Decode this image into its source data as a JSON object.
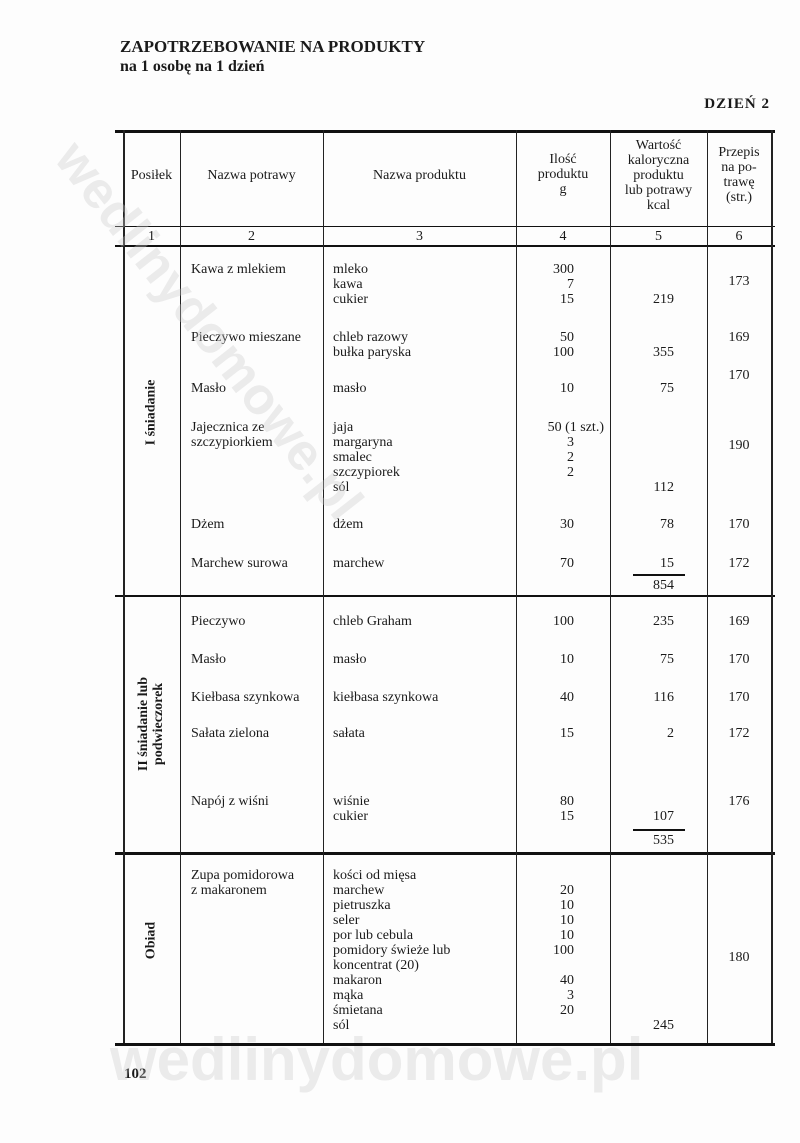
{
  "title": "ZAPOTRZEBOWANIE NA PRODUKTY",
  "subtitle": "na 1 osobę na 1 dzień",
  "day": "DZIEŃ 2",
  "page_number": "102",
  "watermark": "wedlinydomowe.pl",
  "table": {
    "headers": [
      "Posiłek",
      "Nazwa potrawy",
      "Nazwa produktu",
      "Ilość\nproduktu\ng",
      "Wartość\nkaloryczna\nproduktu\nlub potrawy\nkcal",
      "Przepis\nna po-\ntrawę\n(str.)"
    ],
    "column_numbers": [
      "1",
      "2",
      "3",
      "4",
      "5",
      "6"
    ],
    "meals": [
      {
        "name": "I śniadanie",
        "total": "854",
        "dishes": [
          {
            "name": "Kawa z mlekiem",
            "products": [
              "mleko",
              "kawa",
              "cukier"
            ],
            "qty": [
              "300",
              "7",
              "15"
            ],
            "kcal": "219",
            "recipe": "173"
          },
          {
            "name": "Pieczywo mieszane",
            "products": [
              "chleb razowy",
              "bułka paryska"
            ],
            "qty": [
              "50",
              "100"
            ],
            "kcal": "355",
            "recipe": "169"
          },
          {
            "name": "Masło",
            "products": [
              "masło"
            ],
            "qty": [
              "10"
            ],
            "kcal": "75",
            "recipe": "170"
          },
          {
            "name": "Jajecznica ze\nszczypiorkiem",
            "products": [
              "jaja",
              "margaryna",
              "smalec",
              "szczypiorek",
              "sól"
            ],
            "qty": [
              "50 (1 szt.)",
              "3",
              "2",
              "2",
              ""
            ],
            "kcal": "112",
            "recipe": "190"
          },
          {
            "name": "Dżem",
            "products": [
              "dżem"
            ],
            "qty": [
              "30"
            ],
            "kcal": "78",
            "recipe": "170"
          },
          {
            "name": "Marchew surowa",
            "products": [
              "marchew"
            ],
            "qty": [
              "70"
            ],
            "kcal": "15",
            "recipe": "172"
          }
        ]
      },
      {
        "name": "II śniadanie lub\npodwieczorek",
        "total": "535",
        "dishes": [
          {
            "name": "Pieczywo",
            "products": [
              "chleb Graham"
            ],
            "qty": [
              "100"
            ],
            "kcal": "235",
            "recipe": "169"
          },
          {
            "name": "Masło",
            "products": [
              "masło"
            ],
            "qty": [
              "10"
            ],
            "kcal": "75",
            "recipe": "170"
          },
          {
            "name": "Kiełbasa szynkowa",
            "products": [
              "kiełbasa szynkowa"
            ],
            "qty": [
              "40"
            ],
            "kcal": "116",
            "recipe": "170"
          },
          {
            "name": "Sałata zielona",
            "products": [
              "sałata"
            ],
            "qty": [
              "15"
            ],
            "kcal": "2",
            "recipe": "172"
          },
          {
            "name": "Napój z wiśni",
            "products": [
              "wiśnie",
              "cukier"
            ],
            "qty": [
              "80",
              "15"
            ],
            "kcal": "107",
            "recipe": "176"
          }
        ]
      },
      {
        "name": "Obiad",
        "total": "",
        "dishes": [
          {
            "name": "Zupa pomidorowa\nz makaronem",
            "products": [
              "kości od mięsa",
              "marchew",
              "pietruszka",
              "seler",
              "por lub cebula",
              "pomidory świeże lub",
              "koncentrat (20)",
              "makaron",
              "mąka",
              "śmietana",
              "sól"
            ],
            "qty": [
              "",
              "20",
              "10",
              "10",
              "10",
              "100",
              "",
              "40",
              "3",
              "20",
              ""
            ],
            "kcal": "245",
            "recipe": "180"
          }
        ]
      }
    ]
  }
}
